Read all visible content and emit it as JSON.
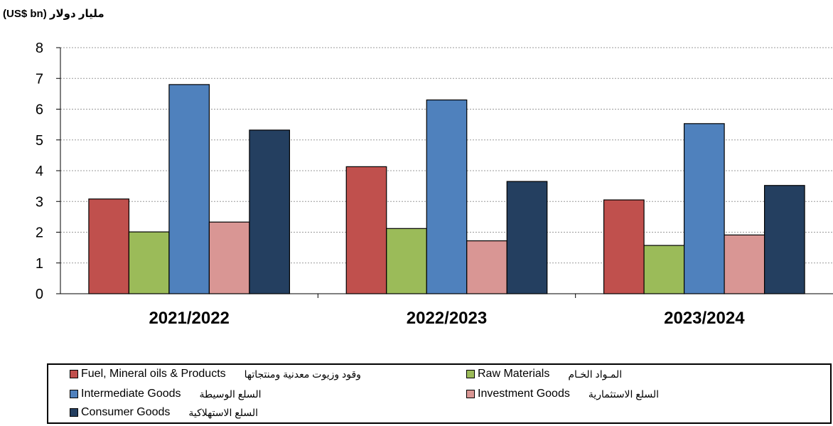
{
  "unit_label": "مليار دولار (US$ bn)",
  "chart_data": {
    "type": "bar",
    "categories": [
      "2021/2022",
      "2022/2023",
      "2023/2024"
    ],
    "series": [
      {
        "name": "Fuel, Mineral oils & Products",
        "name_ar": "وقود وزيوت معدنية ومنتجاتها",
        "color": "#c0504d",
        "values": [
          3.08,
          4.13,
          3.05
        ]
      },
      {
        "name": "Raw Materials",
        "name_ar": "المـواد الخـام",
        "color": "#9bbb59",
        "values": [
          2.01,
          2.12,
          1.57
        ]
      },
      {
        "name": "Intermediate Goods",
        "name_ar": "السلع الوسيطة",
        "color": "#4f81bd",
        "values": [
          6.8,
          6.3,
          5.53
        ]
      },
      {
        "name": "Investment Goods",
        "name_ar": "السلع الاستثمارية",
        "color": "#d99694",
        "values": [
          2.33,
          1.72,
          1.91
        ]
      },
      {
        "name": "Consumer Goods",
        "name_ar": "السلع الاستهلاكية",
        "color": "#243f60",
        "values": [
          5.32,
          3.65,
          3.52
        ]
      }
    ],
    "yticks": [
      0,
      1,
      2,
      3,
      4,
      5,
      6,
      7,
      8
    ],
    "ylim": [
      0,
      8
    ],
    "grid": true,
    "legend_position": "bottom"
  }
}
